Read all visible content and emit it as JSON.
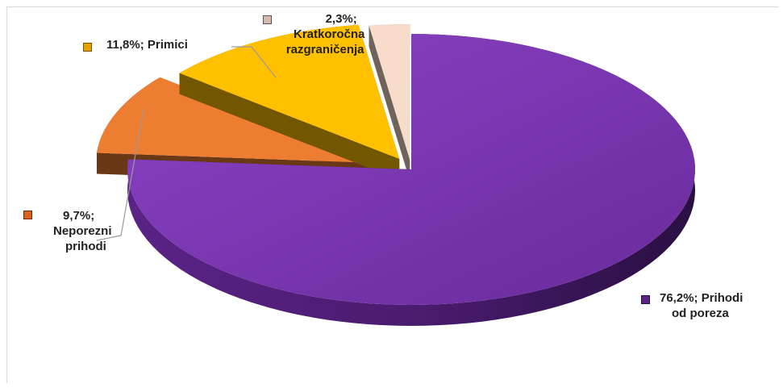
{
  "chart_data": {
    "type": "pie",
    "style": "3d-exploded",
    "title": "",
    "slices": [
      {
        "label": "Prihodi od poreza",
        "value": 76.2,
        "display": "76,2%",
        "color": "#7030A0"
      },
      {
        "label": "Neporezni prihodi",
        "value": 9.7,
        "display": "9,7%",
        "color": "#ED7D31"
      },
      {
        "label": "Primici",
        "value": 11.8,
        "display": "11,8%",
        "color": "#FFC000"
      },
      {
        "label": "Kratkoročna razgraničenja",
        "value": 2.3,
        "display": "2,3%",
        "color": "#F8DCCB"
      }
    ]
  },
  "labels": {
    "porez": {
      "pct": "76,2%;",
      "l1": "Prihodi",
      "l2": "od poreza"
    },
    "neporez": {
      "pct": "9,7%;",
      "l1": "Neporezni",
      "l2": "prihodi"
    },
    "primici": {
      "pct": "11,8%;",
      "l1": "Primici"
    },
    "kratko": {
      "pct": "2,3%;",
      "l1": "Kratkoročna",
      "l2": "razgraničenja"
    }
  }
}
